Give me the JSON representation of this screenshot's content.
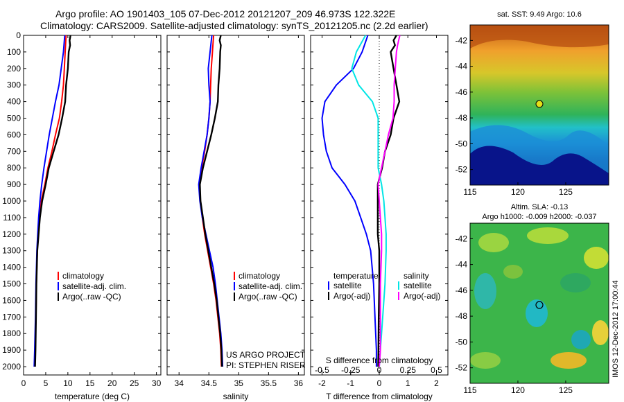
{
  "header": {
    "line1": "Argo profile: AO 1901403_105 07-Dec-2012 20121207_209 46.973S 122.322E",
    "line2": "Climatology: CARS2009. Satellite-adjusted climatology: synTS_20121205.nc (2.2d earlier)"
  },
  "colors": {
    "climatology": "#ff0000",
    "satellite": "#0000ff",
    "argo": "#000000",
    "cyan": "#00e5e5",
    "magenta": "#ff00ff"
  },
  "annotations": {
    "project": "US ARGO PROJECT",
    "pi": "PI: STEPHEN RISER",
    "sst_title": "sat. SST: 9.49 Argo: 10.6",
    "sla_title1": "Altim. SLA: -0.13",
    "sla_title2": "Argo h1000: -0.009 h2000: -0.037",
    "imos": "IMOS 12-Dec-2012 17:00:44"
  },
  "legends": {
    "temp": [
      "climatology",
      "satellite-adj. clim.",
      "Argo(..raw -QC)"
    ],
    "sal": [
      "climatology",
      "satellite-adj. clim.",
      "Argo(..raw -QC)"
    ],
    "diff_t_head": "temperature",
    "diff_s_head": "salinity",
    "diff_t": [
      "satellite",
      "Argo(-adj)"
    ],
    "diff_s": [
      "satellite",
      "Argo(-adj)"
    ]
  },
  "chart_data": [
    {
      "type": "line",
      "xlabel": "temperature (deg C)",
      "ylabel": "",
      "xlim": [
        0,
        31
      ],
      "ylim": [
        2050,
        0
      ],
      "xticks": [
        0,
        5,
        10,
        15,
        20,
        25,
        30
      ],
      "yticks": [
        0,
        100,
        200,
        300,
        400,
        500,
        600,
        700,
        800,
        900,
        1000,
        1100,
        1200,
        1300,
        1400,
        1500,
        1600,
        1700,
        1800,
        1900,
        2000
      ],
      "legend": "center-right",
      "series": [
        {
          "name": "climatology",
          "color": "#ff0000",
          "y": [
            0,
            100,
            200,
            300,
            400,
            500,
            600,
            700,
            800,
            900,
            1000,
            1100,
            1200,
            1300,
            1500,
            1700,
            1900,
            2000
          ],
          "x": [
            9.6,
            9.4,
            9.2,
            9.0,
            8.6,
            8.1,
            7.2,
            6.4,
            5.5,
            4.8,
            4.0,
            3.6,
            3.3,
            3.1,
            2.9,
            2.8,
            2.6,
            2.5
          ]
        },
        {
          "name": "satellite-adj. clim.",
          "color": "#0000ff",
          "y": [
            0,
            100,
            200,
            300,
            400,
            500,
            600,
            700,
            800,
            900,
            1000,
            1100,
            1200,
            1300,
            1500,
            1700,
            1900,
            2000
          ],
          "x": [
            9.3,
            9.0,
            8.5,
            8.0,
            7.2,
            6.5,
            5.8,
            5.2,
            4.6,
            4.1,
            3.7,
            3.4,
            3.2,
            3.0,
            2.8,
            2.7,
            2.5,
            2.4
          ]
        },
        {
          "name": "Argo(..raw -QC)",
          "color": "#000000",
          "y": [
            0,
            30,
            60,
            100,
            200,
            300,
            400,
            500,
            600,
            700,
            800,
            900,
            1000,
            1100,
            1200,
            1300,
            1500,
            1700,
            1900,
            2000
          ],
          "x": [
            10.6,
            10.4,
            10.5,
            10.2,
            10.0,
            9.6,
            9.4,
            8.7,
            7.9,
            6.8,
            5.7,
            5.0,
            4.2,
            3.7,
            3.4,
            3.1,
            2.9,
            2.8,
            2.7,
            2.6
          ]
        }
      ]
    },
    {
      "type": "line",
      "xlabel": "salinity",
      "xlim": [
        33.8,
        36.1
      ],
      "ylim": [
        2050,
        0
      ],
      "xticks": [
        34,
        34.5,
        35,
        35.5,
        36
      ],
      "legend": "center-right",
      "series": [
        {
          "name": "climatology",
          "color": "#ff0000",
          "y": [
            0,
            100,
            200,
            300,
            400,
            500,
            600,
            700,
            800,
            900,
            1000,
            1100,
            1200,
            1300,
            1400,
            1500,
            1600,
            1700,
            1800,
            1900,
            2000
          ],
          "x": [
            34.58,
            34.56,
            34.54,
            34.53,
            34.52,
            34.5,
            34.47,
            34.43,
            34.38,
            34.34,
            34.36,
            34.39,
            34.43,
            34.48,
            34.53,
            34.58,
            34.62,
            34.65,
            34.68,
            34.7,
            34.71
          ]
        },
        {
          "name": "satellite-adj. clim.",
          "color": "#0000ff",
          "y": [
            0,
            100,
            200,
            300,
            400,
            500,
            600,
            700,
            800,
            900,
            1000,
            1100,
            1200,
            1300,
            1400,
            1500,
            1600,
            1700,
            1800,
            1900,
            2000
          ],
          "x": [
            34.55,
            34.52,
            34.49,
            34.5,
            34.52,
            34.5,
            34.47,
            34.42,
            34.37,
            34.33,
            34.35,
            34.39,
            34.45,
            34.51,
            34.57,
            34.61,
            34.64,
            34.67,
            34.7,
            34.72,
            34.73
          ]
        },
        {
          "name": "Argo(..raw -QC)",
          "color": "#000000",
          "y": [
            0,
            30,
            60,
            100,
            200,
            300,
            400,
            500,
            600,
            700,
            800,
            900,
            1000,
            1100,
            1200,
            1300,
            1400,
            1500,
            1600,
            1700,
            1800,
            1900,
            2000
          ],
          "x": [
            34.7,
            34.68,
            34.7,
            34.69,
            34.68,
            34.66,
            34.65,
            34.6,
            34.54,
            34.47,
            34.4,
            34.35,
            34.36,
            34.4,
            34.44,
            34.49,
            34.54,
            34.59,
            34.63,
            34.66,
            34.69,
            34.71,
            34.72
          ]
        }
      ]
    },
    {
      "type": "line",
      "xlabel": "T difference from climatology",
      "xlabel2": "S difference from climatology",
      "xlim": [
        -2.4,
        2.4
      ],
      "ylim": [
        2050,
        0
      ],
      "xticks": [
        -2,
        -1,
        0,
        1,
        2
      ],
      "x2ticks": [
        -0.5,
        -0.25,
        0,
        0.25,
        0.5
      ],
      "x2tick_labels": [
        "-0.5",
        "-0.25",
        "0",
        "0.25",
        "0.5"
      ],
      "legend": "center",
      "series": [
        {
          "name": "temperature satellite",
          "color": "#0000ff",
          "y": [
            0,
            100,
            200,
            300,
            400,
            500,
            600,
            700,
            800,
            900,
            1000,
            1100,
            1200,
            1300,
            1500,
            1700,
            1900,
            2000
          ],
          "x": [
            -0.4,
            -0.6,
            -0.9,
            -1.5,
            -1.9,
            -2.0,
            -1.95,
            -1.85,
            -1.65,
            -1.2,
            -0.85,
            -0.65,
            -0.45,
            -0.3,
            -0.2,
            -0.15,
            -0.1,
            -0.1
          ]
        },
        {
          "name": "temperature Argo(-adj)",
          "color": "#000000",
          "y": [
            0,
            30,
            60,
            100,
            200,
            300,
            400,
            500,
            600,
            700,
            800,
            900,
            1000,
            1100,
            1200,
            1300,
            1500,
            1700,
            1900,
            2000
          ],
          "x": [
            0.6,
            0.5,
            0.55,
            0.4,
            0.5,
            0.6,
            0.7,
            0.5,
            0.4,
            0.2,
            0.1,
            -0.05,
            -0.05,
            -0.05,
            -0.05,
            0.0,
            0.0,
            -0.02,
            -0.03,
            -0.04
          ]
        },
        {
          "name": "salinity satellite",
          "color": "#00e5e5",
          "y": [
            0,
            100,
            200,
            300,
            400,
            500,
            600,
            700,
            800,
            900,
            1000,
            1100,
            1200,
            1300,
            1500,
            1700,
            1900,
            2000
          ],
          "x": [
            -0.12,
            -0.2,
            -0.24,
            -0.18,
            -0.06,
            -0.01,
            -0.01,
            -0.01,
            -0.01,
            0.02,
            0.04,
            0.05,
            0.06,
            0.06,
            0.05,
            0.03,
            0.01,
            0.0
          ]
        },
        {
          "name": "salinity Argo(-adj)",
          "color": "#ff00ff",
          "y": [
            0,
            30,
            60,
            100,
            200,
            300,
            400,
            500,
            600,
            700,
            800,
            900,
            1000,
            1100,
            1200,
            1300,
            1500,
            1700,
            1900,
            2000
          ],
          "x": [
            0.18,
            0.17,
            0.16,
            0.15,
            0.14,
            0.13,
            0.13,
            0.12,
            0.08,
            0.05,
            0.02,
            -0.01,
            0.0,
            0.01,
            0.02,
            0.02,
            0.01,
            0.01,
            0.01,
            0.0
          ]
        }
      ]
    },
    {
      "type": "heatmap",
      "title": "sat. SST: 9.49 Argo: 10.6",
      "xlim": [
        115,
        129.5
      ],
      "ylim": [
        -53.2,
        -40.8
      ],
      "xticks": [
        115,
        120,
        125
      ],
      "yticks": [
        -42,
        -44,
        -46,
        -48,
        -50,
        -52
      ],
      "marker": {
        "lon": 122.322,
        "lat": -46.973
      }
    },
    {
      "type": "heatmap",
      "title": "Altim. SLA: -0.13",
      "xlim": [
        115,
        129.5
      ],
      "ylim": [
        -53.2,
        -40.8
      ],
      "xticks": [
        115,
        120,
        125
      ],
      "yticks": [
        -42,
        -44,
        -46,
        -48,
        -50,
        -52
      ],
      "marker": {
        "lon": 122.322,
        "lat": -46.973
      }
    }
  ]
}
